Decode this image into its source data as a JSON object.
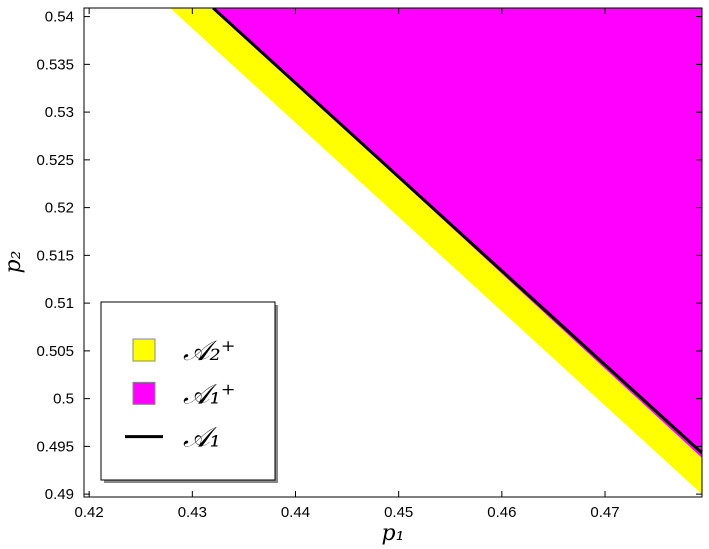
{
  "chart_data": {
    "type": "region",
    "xlabel": "p₁",
    "ylabel": "p₂",
    "xlim": [
      0.4195,
      0.4794
    ],
    "ylim": [
      0.4897,
      0.5409
    ],
    "xticks": [
      0.42,
      0.43,
      0.44,
      0.45,
      0.46,
      0.47
    ],
    "yticks": [
      0.49,
      0.495,
      0.5,
      0.505,
      0.51,
      0.515,
      0.52,
      0.525,
      0.53,
      0.535,
      0.54
    ],
    "legend": "lower left",
    "series": [
      {
        "name": "𝒜₂⁺",
        "type": "area",
        "color": "#ffff00",
        "x": [
          0.42785,
          0.4794,
          0.4794,
          0.43202
        ],
        "y": [
          0.5409,
          0.49,
          0.4943,
          0.5409
        ]
      },
      {
        "name": "𝒜₁⁺",
        "type": "area",
        "color": "#ff00ff",
        "x": [
          0.43202,
          0.4794,
          0.4794
        ],
        "y": [
          0.5409,
          0.5409,
          0.4938
        ]
      },
      {
        "name": "𝒜₁",
        "type": "line",
        "color": "#000000",
        "x": [
          0.43202,
          0.4794
        ],
        "y": [
          0.5409,
          0.4943
        ]
      }
    ]
  }
}
